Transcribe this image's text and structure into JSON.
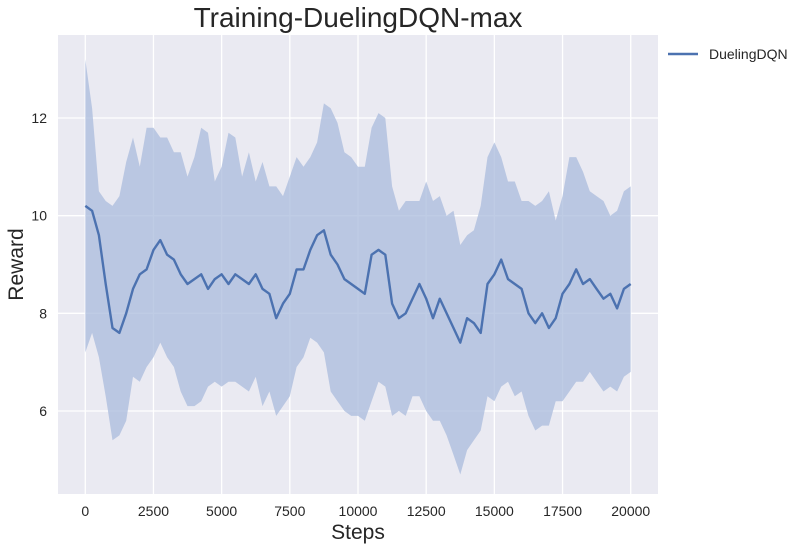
{
  "chart_data": {
    "type": "line",
    "title": "Training-DuelingDQN-max",
    "xlabel": "Steps",
    "ylabel": "Reward",
    "xlim": [
      -1000,
      21000
    ],
    "ylim": [
      4.3,
      13.7
    ],
    "xticks": [
      0,
      2500,
      5000,
      7500,
      10000,
      12500,
      15000,
      17500,
      20000
    ],
    "xtick_labels": [
      "0",
      "2500",
      "5000",
      "7500",
      "10000",
      "12500",
      "15000",
      "17500",
      "20000"
    ],
    "yticks": [
      6,
      8,
      10,
      12
    ],
    "ytick_labels": [
      "6",
      "8",
      "10",
      "12"
    ],
    "grid": true,
    "legend_position": "outside-top-right",
    "colors": {
      "background": "#eaeaf2",
      "grid": "#ffffff",
      "line": "#4c72b0",
      "band": "#a9bbdc"
    },
    "series": [
      {
        "name": "DuelingDQN",
        "x": [
          0,
          250,
          500,
          750,
          1000,
          1250,
          1500,
          1750,
          2000,
          2250,
          2500,
          2750,
          3000,
          3250,
          3500,
          3750,
          4000,
          4250,
          4500,
          4750,
          5000,
          5250,
          5500,
          5750,
          6000,
          6250,
          6500,
          6750,
          7000,
          7250,
          7500,
          7750,
          8000,
          8250,
          8500,
          8750,
          9000,
          9250,
          9500,
          9750,
          10000,
          10250,
          10500,
          10750,
          11000,
          11250,
          11500,
          11750,
          12000,
          12250,
          12500,
          12750,
          13000,
          13250,
          13500,
          13750,
          14000,
          14250,
          14500,
          14750,
          15000,
          15250,
          15500,
          15750,
          16000,
          16250,
          16500,
          16750,
          17000,
          17250,
          17500,
          17750,
          18000,
          18250,
          18500,
          18750,
          19000,
          19250,
          19500,
          19750,
          20000
        ],
        "y": [
          10.2,
          10.1,
          9.6,
          8.6,
          7.7,
          7.6,
          8.0,
          8.5,
          8.8,
          8.9,
          9.3,
          9.5,
          9.2,
          9.1,
          8.8,
          8.6,
          8.7,
          8.8,
          8.5,
          8.7,
          8.8,
          8.6,
          8.8,
          8.7,
          8.6,
          8.8,
          8.5,
          8.4,
          7.9,
          8.2,
          8.4,
          8.9,
          8.9,
          9.3,
          9.6,
          9.7,
          9.2,
          9.0,
          8.7,
          8.6,
          8.5,
          8.4,
          9.2,
          9.3,
          9.2,
          8.2,
          7.9,
          8.0,
          8.3,
          8.6,
          8.3,
          7.9,
          8.3,
          8.0,
          7.7,
          7.4,
          7.9,
          7.8,
          7.6,
          8.6,
          8.8,
          9.1,
          8.7,
          8.6,
          8.5,
          8.0,
          7.8,
          8.0,
          7.7,
          7.9,
          8.4,
          8.6,
          8.9,
          8.6,
          8.7,
          8.5,
          8.3,
          8.4,
          8.1,
          8.5,
          8.6
        ],
        "band_upper": [
          13.2,
          12.2,
          10.5,
          10.3,
          10.2,
          10.4,
          11.1,
          11.6,
          11.0,
          11.8,
          11.8,
          11.6,
          11.6,
          11.3,
          11.3,
          10.8,
          11.2,
          11.8,
          11.7,
          10.7,
          11.0,
          11.7,
          11.6,
          10.8,
          11.3,
          10.7,
          11.1,
          10.6,
          10.6,
          10.4,
          10.8,
          11.2,
          11.0,
          11.2,
          11.5,
          12.3,
          12.2,
          11.9,
          11.3,
          11.2,
          11.0,
          11.0,
          11.8,
          12.1,
          12.0,
          10.6,
          10.1,
          10.3,
          10.3,
          10.3,
          10.7,
          10.3,
          10.4,
          10.0,
          10.1,
          9.4,
          9.6,
          9.7,
          10.2,
          11.2,
          11.5,
          11.2,
          10.7,
          10.7,
          10.3,
          10.3,
          10.2,
          10.3,
          10.5,
          9.9,
          10.4,
          11.2,
          11.2,
          10.9,
          10.5,
          10.4,
          10.3,
          10.0,
          10.1,
          10.5,
          10.6
        ],
        "band_lower": [
          7.2,
          7.6,
          7.1,
          6.3,
          5.4,
          5.5,
          5.8,
          6.7,
          6.6,
          6.9,
          7.1,
          7.4,
          7.1,
          6.9,
          6.4,
          6.1,
          6.1,
          6.2,
          6.5,
          6.6,
          6.5,
          6.6,
          6.6,
          6.5,
          6.4,
          6.7,
          6.1,
          6.4,
          5.9,
          6.1,
          6.3,
          6.9,
          7.1,
          7.5,
          7.4,
          7.2,
          6.4,
          6.2,
          6.0,
          5.9,
          5.9,
          5.8,
          6.2,
          6.6,
          6.5,
          5.9,
          6.0,
          5.9,
          6.3,
          6.3,
          6.0,
          5.8,
          5.8,
          5.5,
          5.1,
          4.7,
          5.2,
          5.4,
          5.6,
          6.3,
          6.2,
          6.5,
          6.6,
          6.3,
          6.4,
          5.9,
          5.6,
          5.7,
          5.7,
          6.2,
          6.2,
          6.4,
          6.6,
          6.6,
          6.8,
          6.6,
          6.4,
          6.5,
          6.4,
          6.7,
          6.8
        ]
      }
    ]
  }
}
